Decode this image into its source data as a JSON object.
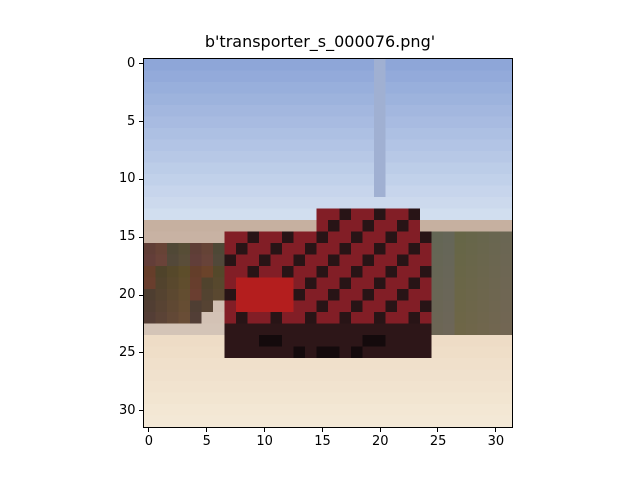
{
  "figure": {
    "title": "b'transporter_s_000076.png'"
  },
  "chart_data": {
    "type": "image",
    "title": "b'transporter_s_000076.png'",
    "image_size": [
      32,
      32
    ],
    "xlim": [
      -0.5,
      31.5
    ],
    "ylim": [
      31.5,
      -0.5
    ],
    "x_ticks": [
      0,
      5,
      10,
      15,
      20,
      25,
      30
    ],
    "y_ticks": [
      0,
      5,
      10,
      15,
      20,
      25,
      30
    ],
    "x_tick_labels": [
      "0",
      "5",
      "10",
      "15",
      "20",
      "25",
      "30"
    ],
    "y_tick_labels": [
      "0",
      "5",
      "10",
      "15",
      "20",
      "25",
      "30"
    ],
    "grid": false
  },
  "colors": {
    "sky_top": "#8ea6d8",
    "sky_bottom": "#d6e2f1",
    "ground": "#f4ead8",
    "truck_red": "#8f1f25",
    "truck_dark": "#2b1416",
    "vegetation": "#4b5b3a"
  }
}
